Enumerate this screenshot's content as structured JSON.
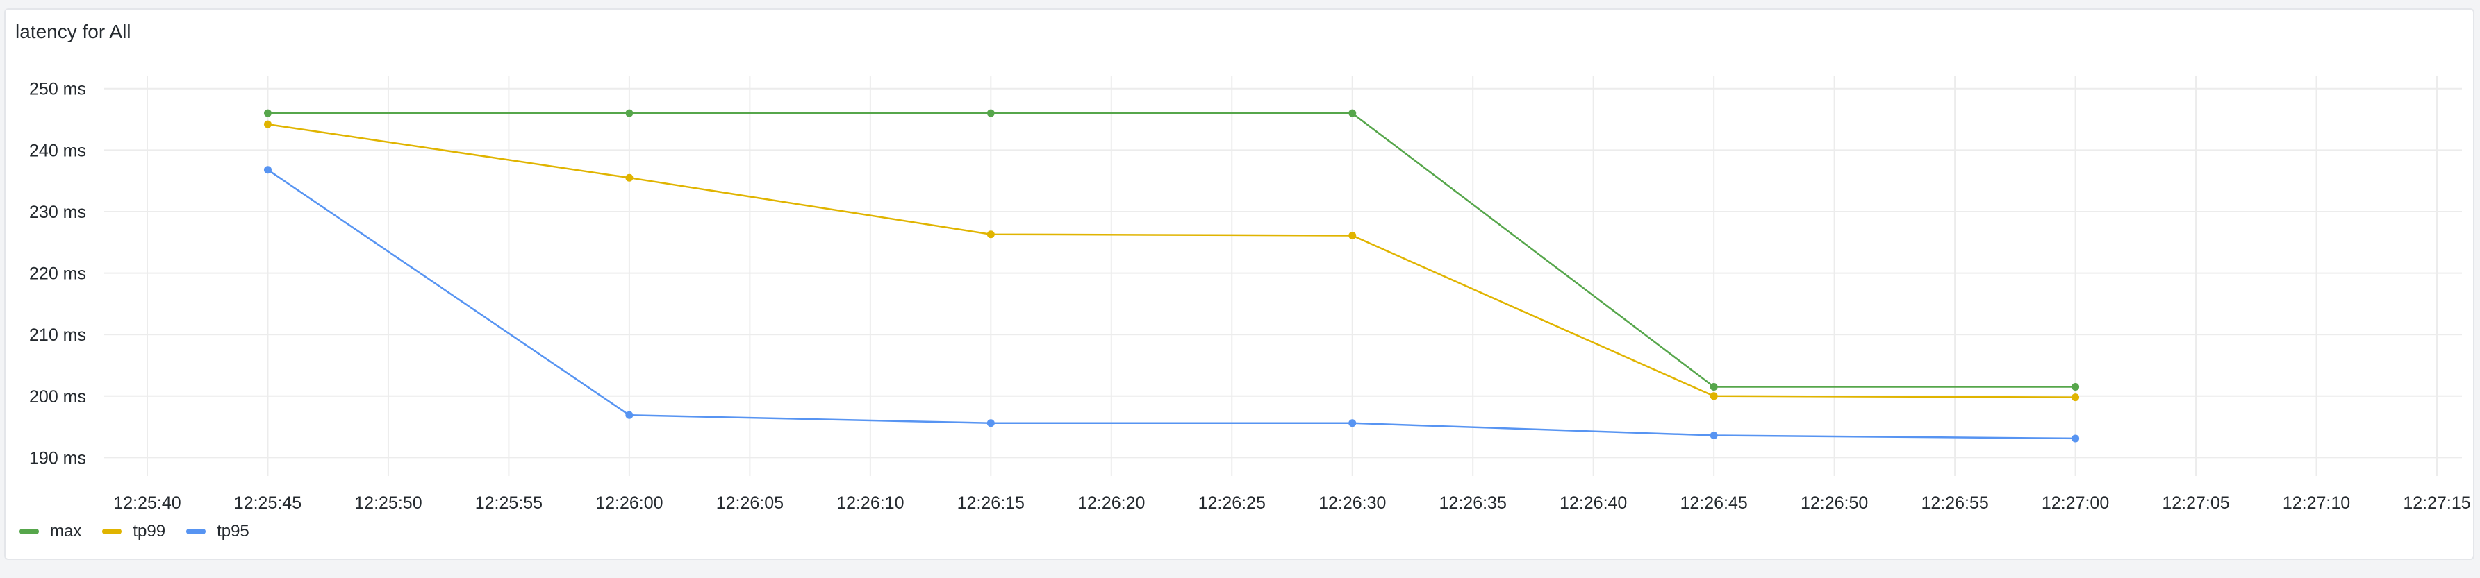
{
  "panel": {
    "title": "latency for All"
  },
  "chart_data": {
    "type": "line",
    "title": "latency for All",
    "xlabel": "",
    "ylabel": "",
    "x": [
      "12:25:45",
      "12:26:00",
      "12:26:15",
      "12:26:30",
      "12:26:45",
      "12:27:00"
    ],
    "x_ticks": [
      "12:25:40",
      "12:25:45",
      "12:25:50",
      "12:25:55",
      "12:26:00",
      "12:26:05",
      "12:26:10",
      "12:26:15",
      "12:26:20",
      "12:26:25",
      "12:26:30",
      "12:26:35",
      "12:26:40",
      "12:26:45",
      "12:26:50",
      "12:26:55",
      "12:27:00",
      "12:27:05",
      "12:27:10",
      "12:27:15"
    ],
    "y_ticks": [
      "190 ms",
      "200 ms",
      "210 ms",
      "220 ms",
      "230 ms",
      "240 ms",
      "250 ms"
    ],
    "xlim": [
      "12:25:40",
      "12:27:15"
    ],
    "ylim": [
      187,
      252
    ],
    "unit": "ms",
    "grid": true,
    "legend_position": "bottom-left",
    "series": [
      {
        "name": "max",
        "color": "#56a64b",
        "values": [
          246,
          246,
          246,
          246,
          201.5,
          201.5
        ]
      },
      {
        "name": "tp99",
        "color": "#e0b400",
        "values": [
          244.2,
          235.5,
          226.3,
          226.1,
          200,
          199.8
        ]
      },
      {
        "name": "tp95",
        "color": "#5794f2",
        "values": [
          236.8,
          196.9,
          195.6,
          195.6,
          193.6,
          193.1
        ]
      }
    ]
  }
}
